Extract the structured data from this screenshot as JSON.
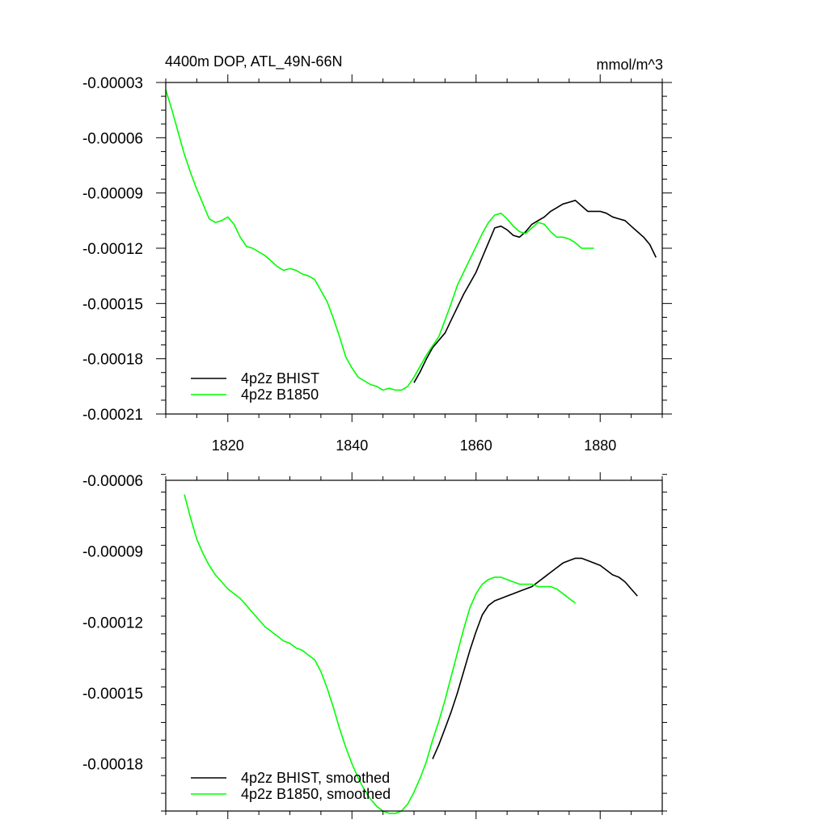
{
  "chart_data": [
    {
      "type": "line",
      "title": "4400m DOP, ATL_49N-66N",
      "units": "mmol/m^3",
      "xlabel": "",
      "ylabel": "",
      "xlim": [
        1810,
        1890
      ],
      "ylim": [
        -0.00021,
        -3e-05
      ],
      "xticks": [
        1820,
        1840,
        1860,
        1880
      ],
      "xtick_labels": [
        "1820",
        "1840",
        "1860",
        "1880"
      ],
      "yticks": [
        -3e-05,
        -6e-05,
        -9e-05,
        -0.00012,
        -0.00015,
        -0.00018,
        -0.00021
      ],
      "ytick_labels": [
        "-0.00003",
        "-0.00006",
        "-0.00009",
        "-0.00012",
        "-0.00015",
        "-0.00018",
        "-0.00021"
      ],
      "legend_position": "bottom-left",
      "series": [
        {
          "name": "4p2z BHIST",
          "color": "#000000",
          "x": [
            1850,
            1851,
            1852,
            1853,
            1854,
            1855,
            1856,
            1857,
            1858,
            1859,
            1860,
            1861,
            1862,
            1863,
            1864,
            1865,
            1866,
            1867,
            1868,
            1869,
            1870,
            1871,
            1872,
            1873,
            1874,
            1875,
            1876,
            1877,
            1878,
            1879,
            1880,
            1881,
            1882,
            1883,
            1884,
            1885,
            1886,
            1887,
            1888,
            1889
          ],
          "values": [
            -0.000193,
            -0.000187,
            -0.00018,
            -0.000174,
            -0.00017,
            -0.000166,
            -0.000159,
            -0.000152,
            -0.000145,
            -0.000139,
            -0.000133,
            -0.000125,
            -0.000117,
            -0.000109,
            -0.000108,
            -0.00011,
            -0.000113,
            -0.000114,
            -0.000111,
            -0.000107,
            -0.000105,
            -0.000103,
            -0.0001,
            -9.8e-05,
            -9.6e-05,
            -9.5e-05,
            -9.4e-05,
            -9.7e-05,
            -0.0001,
            -0.0001,
            -0.0001,
            -0.000101,
            -0.000103,
            -0.000104,
            -0.000105,
            -0.000108,
            -0.000111,
            -0.000114,
            -0.000118,
            -0.000125
          ]
        },
        {
          "name": "4p2z B1850",
          "color": "#00ff00",
          "x": [
            1810,
            1811,
            1812,
            1813,
            1814,
            1815,
            1816,
            1817,
            1818,
            1819,
            1820,
            1821,
            1822,
            1823,
            1824,
            1825,
            1826,
            1827,
            1828,
            1829,
            1830,
            1831,
            1832,
            1833,
            1834,
            1835,
            1836,
            1837,
            1838,
            1839,
            1840,
            1841,
            1842,
            1843,
            1844,
            1845,
            1846,
            1847,
            1848,
            1849,
            1850,
            1851,
            1852,
            1853,
            1854,
            1855,
            1856,
            1857,
            1858,
            1859,
            1860,
            1861,
            1862,
            1863,
            1864,
            1865,
            1866,
            1867,
            1868,
            1869,
            1870,
            1871,
            1872,
            1873,
            1874,
            1875,
            1876,
            1877,
            1878,
            1879
          ],
          "values": [
            -3.4e-05,
            -4.5e-05,
            -5.7e-05,
            -6.9e-05,
            -7.9e-05,
            -8.8e-05,
            -9.6e-05,
            -0.000104,
            -0.000106,
            -0.000105,
            -0.000103,
            -0.000107,
            -0.000114,
            -0.000119,
            -0.00012,
            -0.000122,
            -0.000124,
            -0.000127,
            -0.00013,
            -0.000132,
            -0.000131,
            -0.000132,
            -0.000134,
            -0.000135,
            -0.000137,
            -0.000143,
            -0.000149,
            -0.000158,
            -0.000168,
            -0.000179,
            -0.000185,
            -0.00019,
            -0.000192,
            -0.000194,
            -0.000195,
            -0.000197,
            -0.000196,
            -0.000197,
            -0.000197,
            -0.000195,
            -0.00019,
            -0.000184,
            -0.000178,
            -0.000173,
            -0.000168,
            -0.000159,
            -0.00015,
            -0.00014,
            -0.000133,
            -0.000126,
            -0.000119,
            -0.000112,
            -0.000106,
            -0.000102,
            -0.000101,
            -0.000104,
            -0.000108,
            -0.000111,
            -0.000112,
            -0.000109,
            -0.000106,
            -0.000107,
            -0.000111,
            -0.000114,
            -0.000114,
            -0.000115,
            -0.000117,
            -0.00012,
            -0.00012,
            -0.00012
          ]
        }
      ]
    },
    {
      "type": "line",
      "title": "",
      "xlabel": "",
      "ylabel": "",
      "xlim": [
        1810,
        1890
      ],
      "ylim": [
        -0.0002,
        -6e-05
      ],
      "xticks": [
        1820,
        1840,
        1860,
        1880
      ],
      "xtick_labels": [],
      "yticks": [
        -6e-05,
        -9e-05,
        -0.00012,
        -0.00015,
        -0.00018
      ],
      "ytick_labels": [
        "-0.00006",
        "-0.00009",
        "-0.00012",
        "-0.00015",
        "-0.00018"
      ],
      "legend_position": "bottom-left",
      "series": [
        {
          "name": "4p2z BHIST, smoothed",
          "color": "#000000",
          "x": [
            1853,
            1854,
            1855,
            1856,
            1857,
            1858,
            1859,
            1860,
            1861,
            1862,
            1863,
            1864,
            1865,
            1866,
            1867,
            1868,
            1869,
            1870,
            1871,
            1872,
            1873,
            1874,
            1875,
            1876,
            1877,
            1878,
            1879,
            1880,
            1881,
            1882,
            1883,
            1884,
            1885,
            1886
          ],
          "values": [
            -0.000178,
            -0.000172,
            -0.000165,
            -0.000158,
            -0.00015,
            -0.000141,
            -0.000132,
            -0.000124,
            -0.000117,
            -0.000113,
            -0.000111,
            -0.00011,
            -0.000109,
            -0.000108,
            -0.000107,
            -0.000106,
            -0.000105,
            -0.000103,
            -0.000101,
            -9.9e-05,
            -9.7e-05,
            -9.5e-05,
            -9.4e-05,
            -9.3e-05,
            -9.3e-05,
            -9.4e-05,
            -9.5e-05,
            -9.6e-05,
            -9.8e-05,
            -0.0001,
            -0.000101,
            -0.000103,
            -0.000106,
            -0.000109
          ]
        },
        {
          "name": "4p2z B1850, smoothed",
          "color": "#00ff00",
          "x": [
            1813,
            1814,
            1815,
            1816,
            1817,
            1818,
            1819,
            1820,
            1821,
            1822,
            1823,
            1824,
            1825,
            1826,
            1827,
            1828,
            1829,
            1830,
            1831,
            1832,
            1833,
            1834,
            1835,
            1836,
            1837,
            1838,
            1839,
            1840,
            1841,
            1842,
            1843,
            1844,
            1845,
            1846,
            1847,
            1848,
            1849,
            1850,
            1851,
            1852,
            1853,
            1854,
            1855,
            1856,
            1857,
            1858,
            1859,
            1860,
            1861,
            1862,
            1863,
            1864,
            1865,
            1866,
            1867,
            1868,
            1869,
            1870,
            1871,
            1872,
            1873,
            1874,
            1875,
            1876
          ],
          "values": [
            -6.6e-05,
            -7.6e-05,
            -8.5e-05,
            -9.1e-05,
            -9.6e-05,
            -0.0001,
            -0.000103,
            -0.000106,
            -0.000108,
            -0.00011,
            -0.000113,
            -0.000116,
            -0.000119,
            -0.000122,
            -0.000124,
            -0.000126,
            -0.000128,
            -0.000129,
            -0.000131,
            -0.000132,
            -0.000134,
            -0.000136,
            -0.000141,
            -0.000148,
            -0.000156,
            -0.000165,
            -0.000173,
            -0.00018,
            -0.000186,
            -0.000191,
            -0.000195,
            -0.000198,
            -0.0002,
            -0.000201,
            -0.000201,
            -0.0002,
            -0.000197,
            -0.000192,
            -0.000186,
            -0.000179,
            -0.00017,
            -0.000162,
            -0.000153,
            -0.000143,
            -0.000133,
            -0.000123,
            -0.000114,
            -0.000108,
            -0.000104,
            -0.000102,
            -0.000101,
            -0.000101,
            -0.000102,
            -0.000103,
            -0.000104,
            -0.000104,
            -0.000104,
            -0.000105,
            -0.000105,
            -0.000105,
            -0.000106,
            -0.000108,
            -0.00011,
            -0.000112
          ]
        }
      ]
    }
  ]
}
